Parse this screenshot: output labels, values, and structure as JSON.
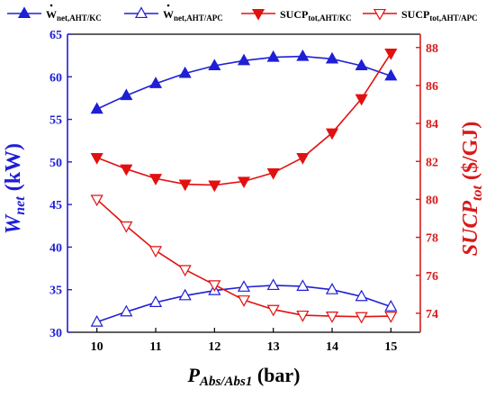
{
  "colors": {
    "left_axis": "#1f1fd6",
    "right_axis": "#d91a1a",
    "series_blue": "#1f1fd6",
    "series_red": "#e31010"
  },
  "chart_data": {
    "type": "line",
    "grid": false,
    "legend_placement": "top",
    "x": [
      10,
      10.5,
      11,
      11.5,
      12,
      12.5,
      13,
      13.5,
      14,
      14.5,
      15
    ],
    "xlim": [
      9.5,
      15.5
    ],
    "xticks": [
      10,
      11,
      12,
      13,
      14,
      15
    ],
    "xlabel": {
      "main": "P",
      "sub": "Abs/Abs1",
      "unit": " (bar)"
    },
    "y_left": {
      "label": {
        "main": "W",
        "sub": "net",
        "unit": " (kW)"
      },
      "lim": [
        30,
        65
      ],
      "ticks": [
        30,
        35,
        40,
        45,
        50,
        55,
        60,
        65
      ]
    },
    "y_right": {
      "label": {
        "main": "SUCP",
        "sub": "tot",
        "unit": " ($/GJ)"
      },
      "lim": [
        73,
        88.7
      ],
      "ticks": [
        74,
        76,
        78,
        80,
        82,
        84,
        86,
        88
      ]
    },
    "series": [
      {
        "name_main": "W",
        "name_sub": "net,AHT/KC",
        "axis": "left",
        "marker": "triangle-up",
        "filled": true,
        "color_key": "series_blue",
        "values": [
          56.2,
          57.8,
          59.2,
          60.4,
          61.3,
          61.9,
          62.3,
          62.4,
          62.1,
          61.3,
          60.1
        ]
      },
      {
        "name_main": "W",
        "name_sub": "net,AHT/APC",
        "axis": "left",
        "marker": "triangle-up",
        "filled": false,
        "color_key": "series_blue",
        "values": [
          31.2,
          32.4,
          33.5,
          34.3,
          34.9,
          35.3,
          35.5,
          35.4,
          35.0,
          34.2,
          33.0
        ]
      },
      {
        "name_main": "SUCP",
        "name_sub": "tot,AHT/KC",
        "axis": "right",
        "marker": "triangle-down",
        "filled": true,
        "color_key": "series_red",
        "values": [
          82.2,
          81.6,
          81.1,
          80.8,
          80.75,
          80.95,
          81.4,
          82.2,
          83.5,
          85.3,
          87.7
        ]
      },
      {
        "name_main": "SUCP",
        "name_sub": "tot,AHT/APC",
        "axis": "right",
        "marker": "triangle-down",
        "filled": false,
        "color_key": "series_red",
        "values": [
          80.0,
          78.6,
          77.3,
          76.3,
          75.5,
          74.7,
          74.2,
          73.9,
          73.85,
          73.82,
          73.85
        ]
      }
    ]
  }
}
